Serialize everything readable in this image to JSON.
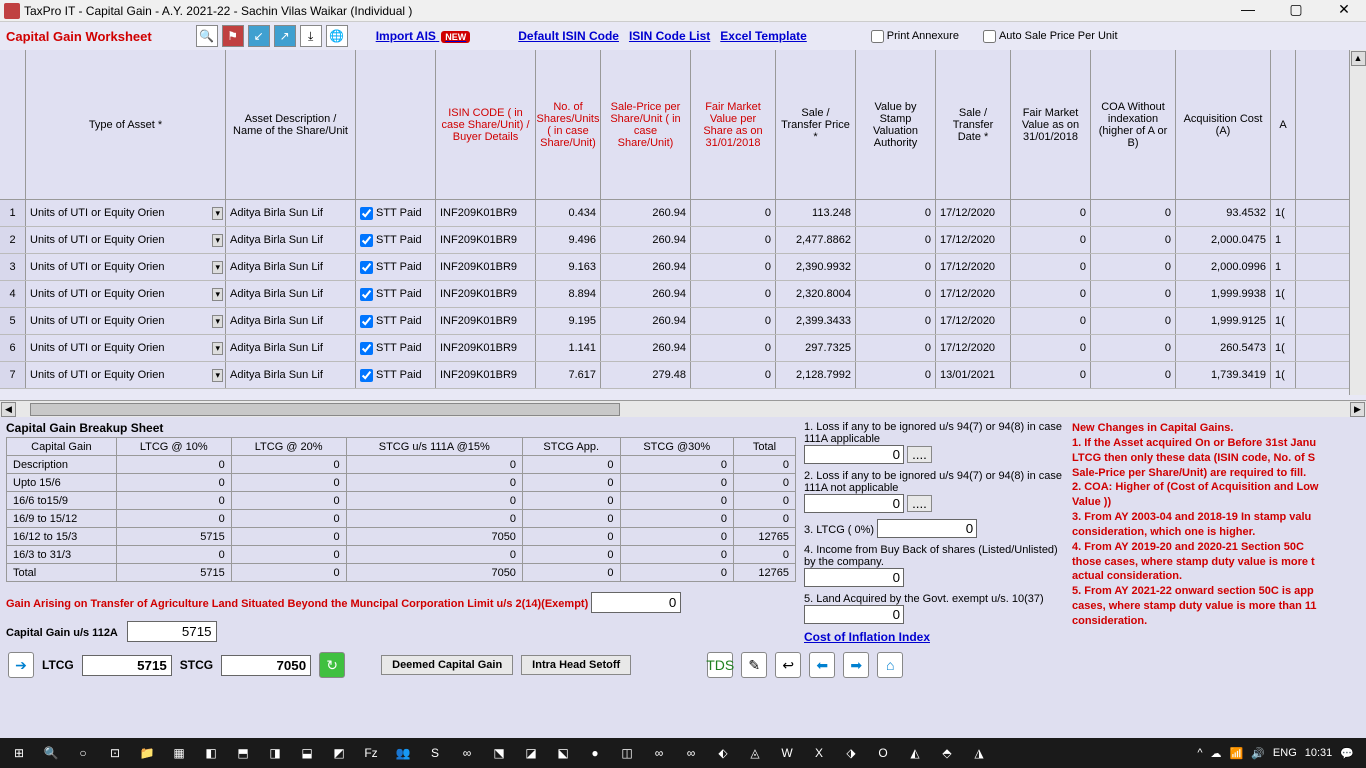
{
  "titlebar": {
    "text": "TaxPro IT - Capital Gain - A.Y. 2021-22 - Sachin Vilas Waikar (Individual )"
  },
  "toolbar": {
    "worksheet_title": "Capital Gain Worksheet",
    "import_ais": "Import AIS",
    "new_badge": "NEW",
    "default_isin": "Default ISIN Code",
    "isin_list": "ISIN Code List",
    "excel_tmpl": "Excel Template",
    "print_annex": "Print Annexure",
    "auto_price": "Auto Sale Price Per Unit"
  },
  "grid": {
    "headers": {
      "type": "Type of Asset *",
      "desc": "Asset Description / Name of the Share/Unit",
      "stt": "",
      "isin": "ISIN CODE ( in case Share/Unit) / Buyer Details",
      "shares": "No. of Shares/Units ( in case Share/Unit)",
      "saleprice": "Sale-Price per Share/Unit ( in case Share/Unit)",
      "fmv_share": "Fair Market Value per Share as on 31/01/2018",
      "saletransfer": "Sale / Transfer Price *",
      "stamp": "Value by Stamp Valuation Authority",
      "date": "Sale / Transfer Date *",
      "fmv_date": "Fair Market Value as on 31/01/2018",
      "coa": "COA Without indexation (higher of A or B)",
      "acq": "Acquisition Cost   (A)",
      "last": "A"
    },
    "col_widths": {
      "type": 200,
      "desc": 130,
      "stt": 80,
      "isin": 100,
      "shares": 65,
      "saleprice": 90,
      "fmv_share": 85,
      "saletransfer": 80,
      "stamp": 80,
      "date": 75,
      "fmv_date": 80,
      "coa": 85,
      "acq": 95,
      "last": 25
    },
    "rows": [
      {
        "n": 1,
        "type": "Units of UTI or Equity Orien",
        "desc": "Aditya Birla Sun Lif",
        "stt": "STT Paid",
        "isin": "INF209K01BR9",
        "shares": "0.434",
        "sp": "260.94",
        "fmvs": "0",
        "st": "113.248",
        "stamp": "0",
        "date": "17/12/2020",
        "fmvd": "0",
        "coa": "0",
        "acq": "93.4532",
        "last": "1("
      },
      {
        "n": 2,
        "type": "Units of UTI or Equity Orien",
        "desc": "Aditya Birla Sun Lif",
        "stt": "STT Paid",
        "isin": "INF209K01BR9",
        "shares": "9.496",
        "sp": "260.94",
        "fmvs": "0",
        "st": "2,477.8862",
        "stamp": "0",
        "date": "17/12/2020",
        "fmvd": "0",
        "coa": "0",
        "acq": "2,000.0475",
        "last": "1"
      },
      {
        "n": 3,
        "type": "Units of UTI or Equity Orien",
        "desc": "Aditya Birla Sun Lif",
        "stt": "STT Paid",
        "isin": "INF209K01BR9",
        "shares": "9.163",
        "sp": "260.94",
        "fmvs": "0",
        "st": "2,390.9932",
        "stamp": "0",
        "date": "17/12/2020",
        "fmvd": "0",
        "coa": "0",
        "acq": "2,000.0996",
        "last": "1"
      },
      {
        "n": 4,
        "type": "Units of UTI or Equity Orien",
        "desc": "Aditya Birla Sun Lif",
        "stt": "STT Paid",
        "isin": "INF209K01BR9",
        "shares": "8.894",
        "sp": "260.94",
        "fmvs": "0",
        "st": "2,320.8004",
        "stamp": "0",
        "date": "17/12/2020",
        "fmvd": "0",
        "coa": "0",
        "acq": "1,999.9938",
        "last": "1("
      },
      {
        "n": 5,
        "type": "Units of UTI or Equity Orien",
        "desc": "Aditya Birla Sun Lif",
        "stt": "STT Paid",
        "isin": "INF209K01BR9",
        "shares": "9.195",
        "sp": "260.94",
        "fmvs": "0",
        "st": "2,399.3433",
        "stamp": "0",
        "date": "17/12/2020",
        "fmvd": "0",
        "coa": "0",
        "acq": "1,999.9125",
        "last": "1("
      },
      {
        "n": 6,
        "type": "Units of UTI or Equity Orien",
        "desc": "Aditya Birla Sun Lif",
        "stt": "STT Paid",
        "isin": "INF209K01BR9",
        "shares": "1.141",
        "sp": "260.94",
        "fmvs": "0",
        "st": "297.7325",
        "stamp": "0",
        "date": "17/12/2020",
        "fmvd": "0",
        "coa": "0",
        "acq": "260.5473",
        "last": "1("
      },
      {
        "n": 7,
        "type": "Units of UTI or Equity Orien",
        "desc": "Aditya Birla Sun Lif",
        "stt": "STT Paid",
        "isin": "INF209K01BR9",
        "shares": "7.617",
        "sp": "279.48",
        "fmvs": "0",
        "st": "2,128.7992",
        "stamp": "0",
        "date": "13/01/2021",
        "fmvd": "0",
        "coa": "0",
        "acq": "1,739.3419",
        "last": "1("
      }
    ]
  },
  "breakup": {
    "title": "Capital Gain Breakup Sheet",
    "cols": [
      "Capital Gain",
      "LTCG @ 10%",
      "LTCG @ 20%",
      "STCG u/s 111A @15%",
      "STCG App.",
      "STCG @30%",
      "Total"
    ],
    "rows": [
      [
        "Description",
        "0",
        "0",
        "0",
        "0",
        "0",
        "0"
      ],
      [
        "Upto 15/6",
        "0",
        "0",
        "0",
        "0",
        "0",
        "0"
      ],
      [
        "16/6 to15/9",
        "0",
        "0",
        "0",
        "0",
        "0",
        "0"
      ],
      [
        "16/9 to 15/12",
        "0",
        "0",
        "0",
        "0",
        "0",
        "0"
      ],
      [
        "16/12 to 15/3",
        "5715",
        "0",
        "7050",
        "0",
        "0",
        "12765"
      ],
      [
        "16/3 to 31/3",
        "0",
        "0",
        "0",
        "0",
        "0",
        "0"
      ],
      [
        "Total",
        "5715",
        "0",
        "7050",
        "0",
        "0",
        "12765"
      ]
    ]
  },
  "side": {
    "l1": "1. Loss if any to be ignored u/s 94(7) or 94(8) in case 111A applicable",
    "v1": "0",
    "l2": "2. Loss if any to be ignored u/s 94(7) or 94(8) in case 111A not applicable",
    "v2": "0",
    "l3": "3. LTCG ( 0%)",
    "v3": "0",
    "l4": "4. Income from Buy Back of shares (Listed/Unlisted) by the company.",
    "v4": "0",
    "l5": "5. Land Acquired by the Govt. exempt u/s. 10(37)",
    "v5": "0",
    "cii": "Cost of Inflation Index"
  },
  "notes": {
    "h": "New Changes in Capital Gains.",
    "n1": "1. If the Asset acquired On or Before 31st Janu",
    "n1b": "LTCG then only these data (ISIN code, No. of S",
    "n1c": "Sale-Price per Share/Unit) are required to fill.",
    "n2": "2. COA:  Higher of (Cost of Acquisition and Low",
    "n2b": "Value ))",
    "n3": "3. From AY 2003-04 and 2018-19 In stamp valu",
    "n3b": "consideration, which one is higher.",
    "n4": "4. From AY 2019-20 and 2020-21 Section 50C",
    "n4b": "those cases, where stamp duty value is more t",
    "n4c": "actual consideration.",
    "n5": "5. From AY 2021-22 onward section 50C is app",
    "n5b": "cases, where stamp duty value is more than 11",
    "n5c": "consideration."
  },
  "bottom": {
    "agri": "Gain Arising on Transfer of Agriculture Land Situated Beyond the Muncipal Corporation Limit  u/s 2(14)(Exempt)",
    "agri_val": "0",
    "cg112a": "Capital Gain u/s 112A",
    "cg112a_val": "5715",
    "ltcg": "LTCG",
    "ltcg_val": "5715",
    "stcg": "STCG",
    "stcg_val": "7050",
    "deemed": "Deemed Capital Gain",
    "intra": "Intra Head Setoff"
  },
  "taskbar": {
    "lang": "ENG",
    "time": "10:31"
  }
}
